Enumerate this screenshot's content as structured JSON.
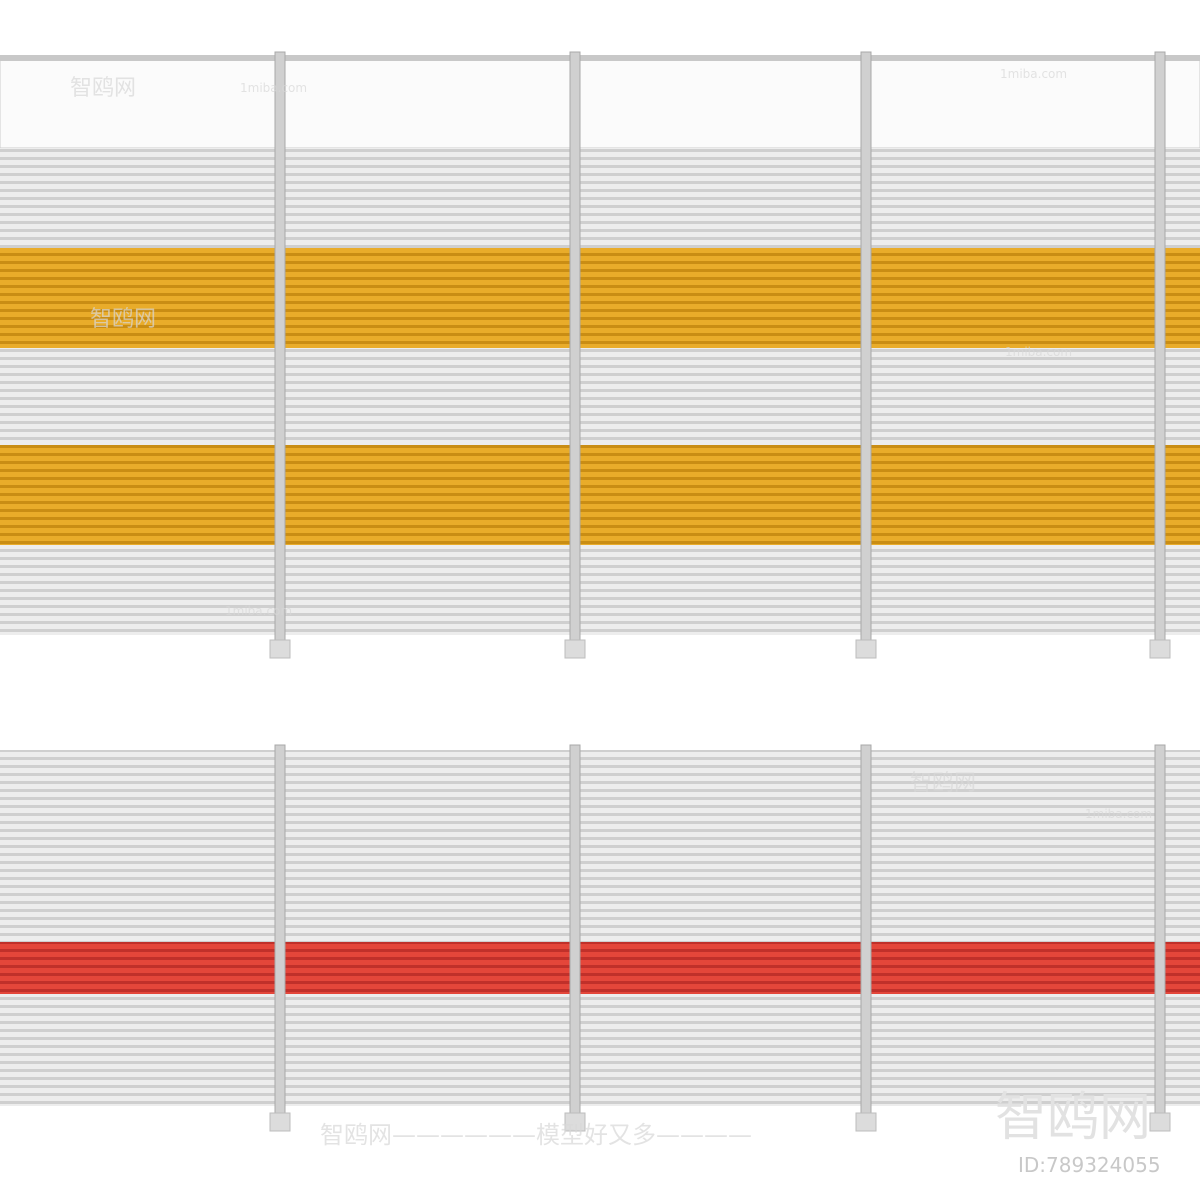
{
  "watermark": {
    "site": "1miba.com",
    "brand": "智鸥网",
    "slogan_line": "智鸥网——————模型好又多————",
    "id": "ID:789324055"
  }
}
